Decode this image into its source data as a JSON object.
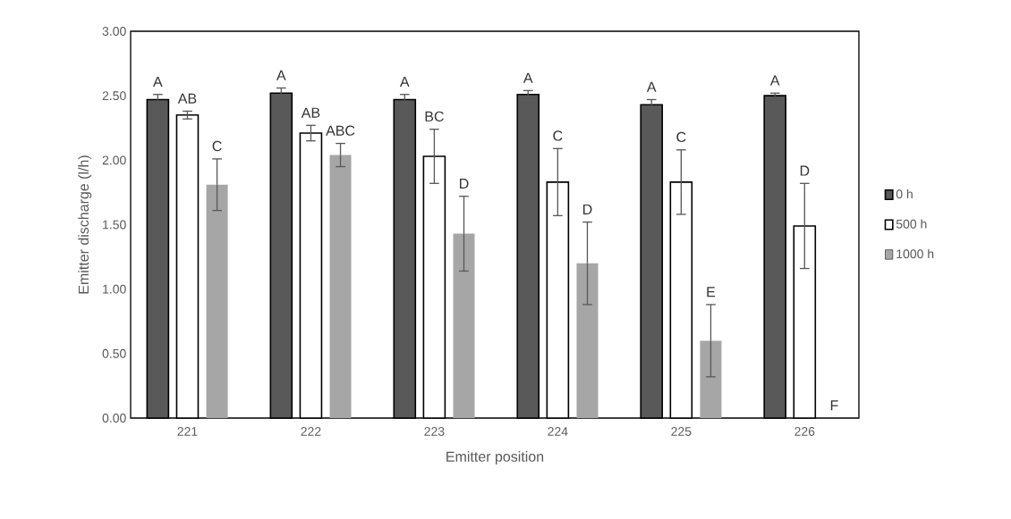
{
  "chart_data": {
    "type": "bar",
    "xlabel": "Emitter position",
    "ylabel": "Emitter discharge (l/h)",
    "categories": [
      "221",
      "222",
      "223",
      "224",
      "225",
      "226"
    ],
    "series": [
      {
        "name": "0 h",
        "color": "#595959",
        "values": [
          2.47,
          2.52,
          2.47,
          2.51,
          2.43,
          2.5
        ],
        "errors": [
          0.04,
          0.04,
          0.04,
          0.03,
          0.04,
          0.02
        ]
      },
      {
        "name": "500 h",
        "color": "#ffffff",
        "values": [
          2.35,
          2.21,
          2.03,
          1.83,
          1.83,
          1.49
        ],
        "errors": [
          0.03,
          0.06,
          0.21,
          0.26,
          0.25,
          0.33
        ]
      },
      {
        "name": "1000 h",
        "color": "#a6a6a6",
        "values": [
          1.81,
          2.04,
          1.43,
          1.2,
          0.6,
          0
        ],
        "errors": [
          0.2,
          0.09,
          0.29,
          0.32,
          0.28,
          null
        ]
      }
    ],
    "ylim": [
      0,
      3
    ],
    "yticks": [
      {
        "value": 0,
        "label": "0.00"
      },
      {
        "value": 0.5,
        "label": "0.50"
      },
      {
        "value": 1,
        "label": "1.00"
      },
      {
        "value": 1.5,
        "label": "1.50"
      },
      {
        "value": 2,
        "label": "2.00"
      },
      {
        "value": 2.5,
        "label": "2.50"
      },
      {
        "value": 3,
        "label": "3.00"
      }
    ],
    "annotations": [
      "A",
      "AB",
      "C",
      "A",
      "AB",
      "ABC",
      "A",
      "BC",
      "D",
      "A",
      "C",
      "D",
      "A",
      "C",
      "E",
      "A",
      "D",
      "F"
    ],
    "legend": "right",
    "grid": false
  }
}
